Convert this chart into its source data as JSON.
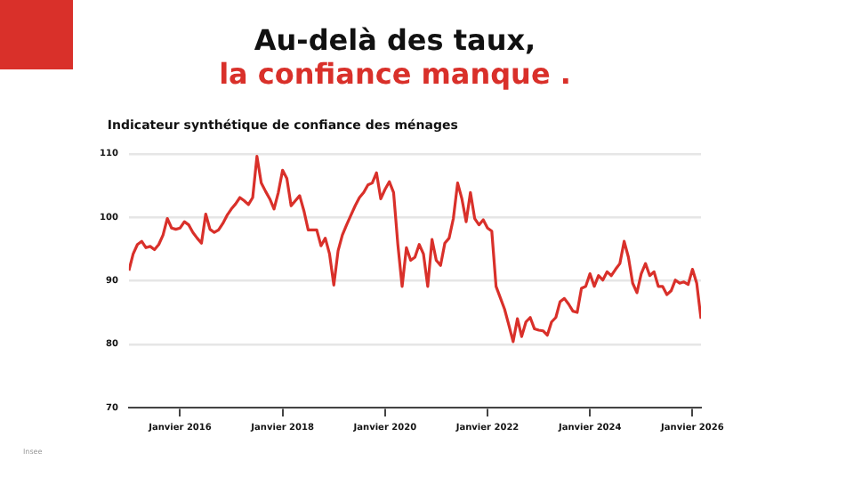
{
  "chart_data": {
    "type": "line",
    "title": "Au-delà des taux,",
    "subtitle": "la confiance manque .",
    "ylabel": "Indicateur synthétique de confiance des ménages",
    "annotations": [
      "Insee"
    ],
    "x": [
      "2015-01",
      "2015-02",
      "2015-03",
      "2015-04",
      "2015-05",
      "2015-06",
      "2015-07",
      "2015-08",
      "2015-09",
      "2015-10",
      "2015-11",
      "2015-12",
      "2016-01",
      "2016-02",
      "2016-03",
      "2016-04",
      "2016-05",
      "2016-06",
      "2016-07",
      "2016-08",
      "2016-09",
      "2016-10",
      "2016-11",
      "2016-12",
      "2017-01",
      "2017-02",
      "2017-03",
      "2017-04",
      "2017-05",
      "2017-06",
      "2017-07",
      "2017-08",
      "2017-09",
      "2017-10",
      "2017-11",
      "2017-12",
      "2018-01",
      "2018-02",
      "2018-03",
      "2018-04",
      "2018-05",
      "2018-06",
      "2018-07",
      "2018-08",
      "2018-09",
      "2018-10",
      "2018-11",
      "2018-12",
      "2019-01",
      "2019-02",
      "2019-03",
      "2019-04",
      "2019-05",
      "2019-06",
      "2019-07",
      "2019-08",
      "2019-09",
      "2019-10",
      "2019-11",
      "2019-12",
      "2020-01",
      "2020-02",
      "2020-03",
      "2020-04",
      "2020-05",
      "2020-06",
      "2020-07",
      "2020-08",
      "2020-09",
      "2020-10",
      "2020-11",
      "2020-12",
      "2021-01",
      "2021-02",
      "2021-03",
      "2021-04",
      "2021-05",
      "2021-06",
      "2021-07",
      "2021-08",
      "2021-09",
      "2021-10",
      "2021-11",
      "2021-12",
      "2022-01",
      "2022-02",
      "2022-03",
      "2022-04",
      "2022-05",
      "2022-06",
      "2022-07",
      "2022-08",
      "2022-09",
      "2022-10",
      "2022-11",
      "2022-12",
      "2023-01",
      "2023-02",
      "2023-03",
      "2023-04",
      "2023-05",
      "2023-06",
      "2023-07",
      "2023-08",
      "2023-09",
      "2023-10",
      "2023-11",
      "2023-12",
      "2024-01",
      "2024-02",
      "2024-03",
      "2024-04",
      "2024-05",
      "2024-06",
      "2024-07",
      "2024-08",
      "2024-09",
      "2024-10",
      "2024-11",
      "2024-12",
      "2025-01",
      "2025-02",
      "2025-03",
      "2025-04",
      "2025-05",
      "2025-06",
      "2025-07",
      "2025-08",
      "2025-09",
      "2025-10",
      "2025-11",
      "2025-12",
      "2026-01",
      "2026-02",
      "2026-03"
    ],
    "series": [
      {
        "color": "#d9302a",
        "values": [
          91.6,
          94.2,
          95.7,
          96.2,
          95.2,
          95.4,
          94.9,
          95.7,
          97.2,
          99.8,
          98.3,
          98.1,
          98.3,
          99.3,
          98.8,
          97.6,
          96.7,
          95.9,
          100.5,
          98.1,
          97.6,
          98.0,
          99.0,
          100.3,
          101.3,
          102.1,
          103.1,
          102.6,
          102.0,
          103.1,
          109.6,
          105.4,
          104.1,
          102.9,
          101.3,
          103.9,
          107.4,
          106.1,
          101.8,
          102.6,
          103.4,
          101.0,
          98.0,
          98.0,
          98.0,
          95.5,
          96.7,
          94.2,
          89.3,
          94.7,
          97.2,
          98.8,
          100.3,
          101.8,
          103.1,
          103.9,
          105.1,
          105.4,
          107.0,
          102.9,
          104.4,
          105.6,
          103.9,
          95.7,
          89.1,
          95.2,
          93.2,
          93.7,
          95.7,
          94.2,
          89.1,
          96.5,
          93.2,
          92.4,
          95.9,
          96.7,
          99.8,
          105.4,
          102.9,
          99.3,
          103.9,
          99.8,
          98.8,
          99.6,
          98.3,
          97.8,
          89.1,
          87.3,
          85.5,
          83.0,
          80.4,
          84.0,
          81.2,
          83.5,
          84.2,
          82.4,
          82.2,
          82.1,
          81.4,
          83.5,
          84.2,
          86.7,
          87.2,
          86.3,
          85.2,
          85.0,
          88.8,
          89.1,
          91.1,
          89.1,
          90.8,
          90.1,
          91.4,
          90.8,
          91.8,
          92.7,
          96.2,
          93.7,
          89.6,
          88.1,
          91.1,
          92.7,
          90.8,
          91.4,
          89.1,
          89.1,
          87.8,
          88.4,
          90.1,
          89.6,
          89.8,
          89.4,
          91.8,
          89.6,
          84.0
        ]
      }
    ],
    "xlim": [
      "2015-01",
      "2026-03"
    ],
    "xticks": [
      {
        "value": "2016-01",
        "label": "Janvier 2016"
      },
      {
        "value": "2018-01",
        "label": "Janvier 2018"
      },
      {
        "value": "2020-01",
        "label": "Janvier 2020"
      },
      {
        "value": "2022-01",
        "label": "Janvier 2022"
      },
      {
        "value": "2024-01",
        "label": "Janvier 2024"
      },
      {
        "value": "2026-01",
        "label": "Janvier 2026"
      }
    ],
    "ylim": [
      70,
      110
    ],
    "yticks": [
      70,
      80,
      90,
      100,
      110
    ],
    "grid": "y",
    "legend": false,
    "marker": "none",
    "line_style": "solid"
  }
}
